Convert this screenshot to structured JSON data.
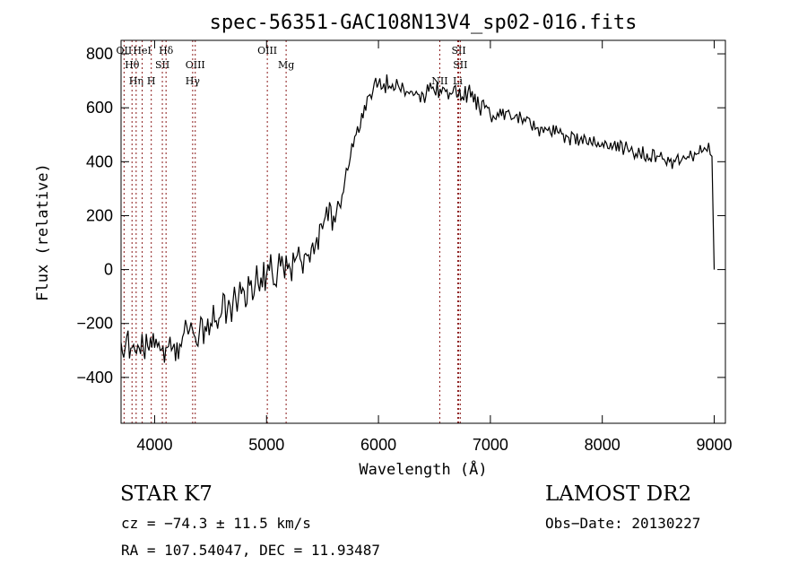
{
  "chart_data": {
    "type": "line",
    "title": "spec-56351-GAC108N13V4_sp02-016.fits",
    "xlabel": "Wavelength (Å)",
    "ylabel": "Flux (relative)",
    "xlim": [
      3700,
      9100
    ],
    "ylim": [
      -570,
      850
    ],
    "xticks": [
      4000,
      5000,
      6000,
      7000,
      8000,
      9000
    ],
    "xtick_labels": [
      "4000",
      "5000",
      "6000",
      "7000",
      "8000",
      "9000"
    ],
    "yticks": [
      -400,
      -200,
      0,
      200,
      400,
      600,
      800
    ],
    "ytick_labels": [
      "−400",
      "−200",
      "0",
      "200",
      "400",
      "600",
      "800"
    ],
    "grid": false,
    "line_color": "#000000",
    "marker_color": "#8b1a1a",
    "series": [
      {
        "x": [
          3700,
          3750,
          3800,
          3850,
          3900,
          3950,
          4000,
          4050,
          4100,
          4150,
          4200,
          4250,
          4300,
          4350,
          4400,
          4450,
          4500,
          4550,
          4600,
          4650,
          4700,
          4750,
          4800,
          4850,
          4900,
          4950,
          5000,
          5050,
          5100,
          5150,
          5200,
          5250,
          5300,
          5350,
          5400,
          5450,
          5500,
          5550,
          5600,
          5650,
          5700,
          5750,
          5800,
          5850,
          5900,
          5950,
          6000,
          6050,
          6100,
          6150,
          6200,
          6250,
          6300,
          6350,
          6400,
          6450,
          6500,
          6550,
          6600,
          6650,
          6700,
          6750,
          6800,
          6850,
          6900,
          6950,
          7000,
          7100,
          7200,
          7300,
          7400,
          7500,
          7600,
          7700,
          7800,
          7900,
          8000,
          8100,
          8200,
          8300,
          8400,
          8500,
          8550,
          8600,
          8650,
          8700,
          8750,
          8800,
          8850,
          8900,
          8950,
          8980,
          9000
        ],
        "y": [
          -270,
          -250,
          -290,
          -280,
          -300,
          -300,
          -290,
          -300,
          -290,
          -300,
          -270,
          -250,
          -240,
          -240,
          -230,
          -210,
          -200,
          -190,
          -160,
          -150,
          -120,
          -100,
          -80,
          -60,
          -50,
          -30,
          -20,
          -10,
          0,
          10,
          20,
          30,
          40,
          60,
          80,
          120,
          150,
          180,
          200,
          240,
          330,
          420,
          500,
          580,
          640,
          660,
          690,
          690,
          680,
          670,
          660,
          660,
          660,
          650,
          650,
          660,
          660,
          670,
          660,
          650,
          640,
          640,
          660,
          620,
          600,
          600,
          570,
          570,
          560,
          560,
          520,
          520,
          510,
          490,
          480,
          470,
          470,
          460,
          450,
          430,
          430,
          420,
          410,
          400,
          400,
          400,
          410,
          420,
          430,
          440,
          470,
          420,
          0
        ]
      }
    ],
    "line_markers": [
      {
        "label": "OII",
        "x": 3727
      },
      {
        "label": "Hθ",
        "x": 3798
      },
      {
        "label": "Hη",
        "x": 3835
      },
      {
        "label": "HeI",
        "x": 3889
      },
      {
        "label": "SII",
        "x": 4069
      },
      {
        "label": "H",
        "x": 3970
      },
      {
        "label": "Hδ",
        "x": 4102
      },
      {
        "label": "OIII",
        "x": 4363
      },
      {
        "label": "Hγ",
        "x": 4340
      },
      {
        "label": "OIII",
        "x": 5007
      },
      {
        "label": "Mg",
        "x": 5175
      },
      {
        "label": "NII",
        "x": 6548
      },
      {
        "label": "SII",
        "x": 6717
      },
      {
        "label": "SII",
        "x": 6731
      },
      {
        "label": "Li",
        "x": 6708
      }
    ]
  },
  "info": {
    "class": "STAR    K7",
    "survey": "LAMOST DR2",
    "cz": "cz = −74.3 ± 11.5 km/s",
    "obs_date": "Obs−Date: 20130227",
    "radec": "RA = 107.54047, DEC =  11.93487"
  }
}
